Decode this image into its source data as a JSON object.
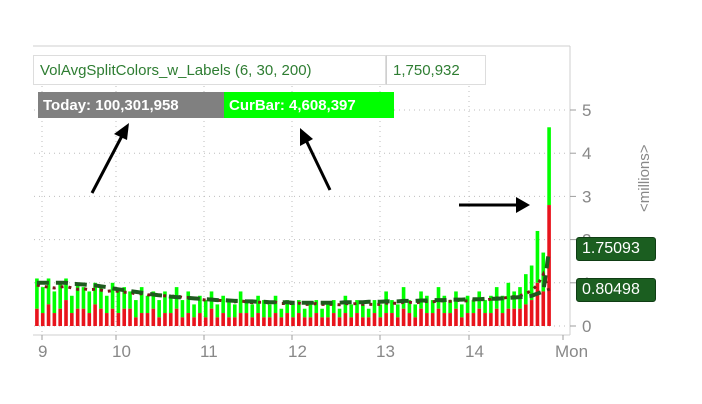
{
  "study": {
    "title": "VolAvgSplitColors_w_Labels (6, 30, 200)",
    "value": "1,750,932"
  },
  "labels": {
    "today": "Today: 100,301,958",
    "curbar": "CurBar: 4,608,397"
  },
  "price_tags": {
    "avg": "1.75093",
    "ma": "0.80498"
  },
  "axis": {
    "unit": "<millions>"
  },
  "colors": {
    "up": "#00ff00",
    "down": "#e8141c",
    "avg_line": "#1e5a1e",
    "ma_line": "#7a1a1a",
    "axis_text": "#888888"
  },
  "chart_data": {
    "type": "bar",
    "ylim": [
      0,
      5.5
    ],
    "yticks": [
      0,
      1,
      2,
      3,
      4,
      5
    ],
    "xticks": [
      "9",
      "10",
      "11",
      "12",
      "13",
      "14",
      "Mon"
    ],
    "series": [
      {
        "values": [
          1.1,
          0.9,
          1.1,
          0.8,
          1.0,
          1.1,
          0.7,
          1.0,
          0.9,
          0.8,
          1.0,
          0.9,
          0.7,
          1.0,
          0.8,
          0.9,
          0.8,
          0.6,
          0.9,
          0.7,
          0.8,
          0.6,
          0.8,
          0.7,
          0.9,
          0.6,
          0.8,
          0.5,
          0.7,
          0.6,
          0.8,
          0.5,
          0.7,
          0.6,
          0.5,
          0.8,
          0.6,
          0.5,
          0.7,
          0.6,
          0.5,
          0.7,
          0.4,
          0.6,
          0.5,
          0.6,
          0.4,
          0.5,
          0.6,
          0.4,
          0.5,
          0.6,
          0.4,
          0.7,
          0.5,
          0.6,
          0.5,
          0.4,
          0.6,
          0.5,
          0.8,
          0.6,
          0.5,
          0.9,
          0.6,
          0.5,
          0.8,
          0.7,
          0.6,
          0.9,
          0.7,
          0.6,
          0.8,
          0.5,
          0.7,
          0.6,
          0.8,
          0.6,
          0.7,
          0.9,
          0.7,
          1.0,
          0.8,
          0.9,
          1.2,
          1.4,
          2.2,
          1.7,
          4.6
        ],
        "split_low": [
          0.4,
          0.3,
          0.5,
          0.3,
          0.4,
          0.6,
          0.3,
          0.4,
          0.4,
          0.3,
          0.5,
          0.4,
          0.3,
          0.4,
          0.3,
          0.4,
          0.4,
          0.2,
          0.3,
          0.3,
          0.4,
          0.2,
          0.3,
          0.3,
          0.4,
          0.2,
          0.3,
          0.2,
          0.3,
          0.2,
          0.4,
          0.2,
          0.3,
          0.2,
          0.2,
          0.3,
          0.3,
          0.2,
          0.3,
          0.2,
          0.2,
          0.3,
          0.2,
          0.3,
          0.2,
          0.3,
          0.2,
          0.2,
          0.3,
          0.2,
          0.2,
          0.3,
          0.2,
          0.3,
          0.2,
          0.3,
          0.2,
          0.2,
          0.3,
          0.2,
          0.3,
          0.3,
          0.2,
          0.4,
          0.3,
          0.2,
          0.4,
          0.3,
          0.3,
          0.4,
          0.3,
          0.3,
          0.4,
          0.2,
          0.3,
          0.3,
          0.4,
          0.3,
          0.3,
          0.4,
          0.3,
          0.4,
          0.4,
          0.4,
          0.5,
          0.6,
          1.0,
          0.8,
          2.8
        ]
      }
    ],
    "avg_line": [
      1.0,
      1.0,
      1.0,
      1.0,
      1.0,
      1.0,
      0.98,
      0.97,
      0.96,
      0.95,
      0.94,
      0.92,
      0.9,
      0.87,
      0.85,
      0.83,
      0.81,
      0.79,
      0.77,
      0.75,
      0.73,
      0.71,
      0.7,
      0.68,
      0.67,
      0.66,
      0.65,
      0.64,
      0.63,
      0.62,
      0.61,
      0.6,
      0.6,
      0.59,
      0.58,
      0.58,
      0.57,
      0.57,
      0.56,
      0.56,
      0.55,
      0.55,
      0.55,
      0.55,
      0.54,
      0.54,
      0.54,
      0.54,
      0.54,
      0.54,
      0.54,
      0.54,
      0.54,
      0.55,
      0.55,
      0.55,
      0.55,
      0.56,
      0.56,
      0.56,
      0.57,
      0.57,
      0.57,
      0.58,
      0.58,
      0.58,
      0.59,
      0.59,
      0.6,
      0.6,
      0.6,
      0.61,
      0.61,
      0.61,
      0.62,
      0.62,
      0.62,
      0.63,
      0.63,
      0.63,
      0.64,
      0.65,
      0.66,
      0.67,
      0.68,
      0.7,
      0.75,
      0.8,
      1.75
    ],
    "ma_line": [
      0.95,
      0.92,
      0.9,
      0.88,
      0.9,
      0.92,
      0.88,
      0.85,
      0.86,
      0.84,
      0.85,
      0.83,
      0.8,
      0.82,
      0.8,
      0.78,
      0.78,
      0.74,
      0.75,
      0.72,
      0.72,
      0.7,
      0.7,
      0.68,
      0.7,
      0.66,
      0.66,
      0.63,
      0.62,
      0.6,
      0.62,
      0.6,
      0.58,
      0.58,
      0.56,
      0.58,
      0.56,
      0.54,
      0.55,
      0.55,
      0.53,
      0.55,
      0.52,
      0.52,
      0.52,
      0.53,
      0.5,
      0.5,
      0.52,
      0.5,
      0.5,
      0.5,
      0.49,
      0.52,
      0.51,
      0.52,
      0.5,
      0.5,
      0.5,
      0.5,
      0.53,
      0.53,
      0.52,
      0.55,
      0.55,
      0.53,
      0.56,
      0.57,
      0.56,
      0.58,
      0.58,
      0.57,
      0.6,
      0.58,
      0.58,
      0.6,
      0.62,
      0.6,
      0.62,
      0.65,
      0.64,
      0.67,
      0.68,
      0.7,
      0.75,
      0.82,
      0.95,
      1.2,
      0.8
    ]
  }
}
